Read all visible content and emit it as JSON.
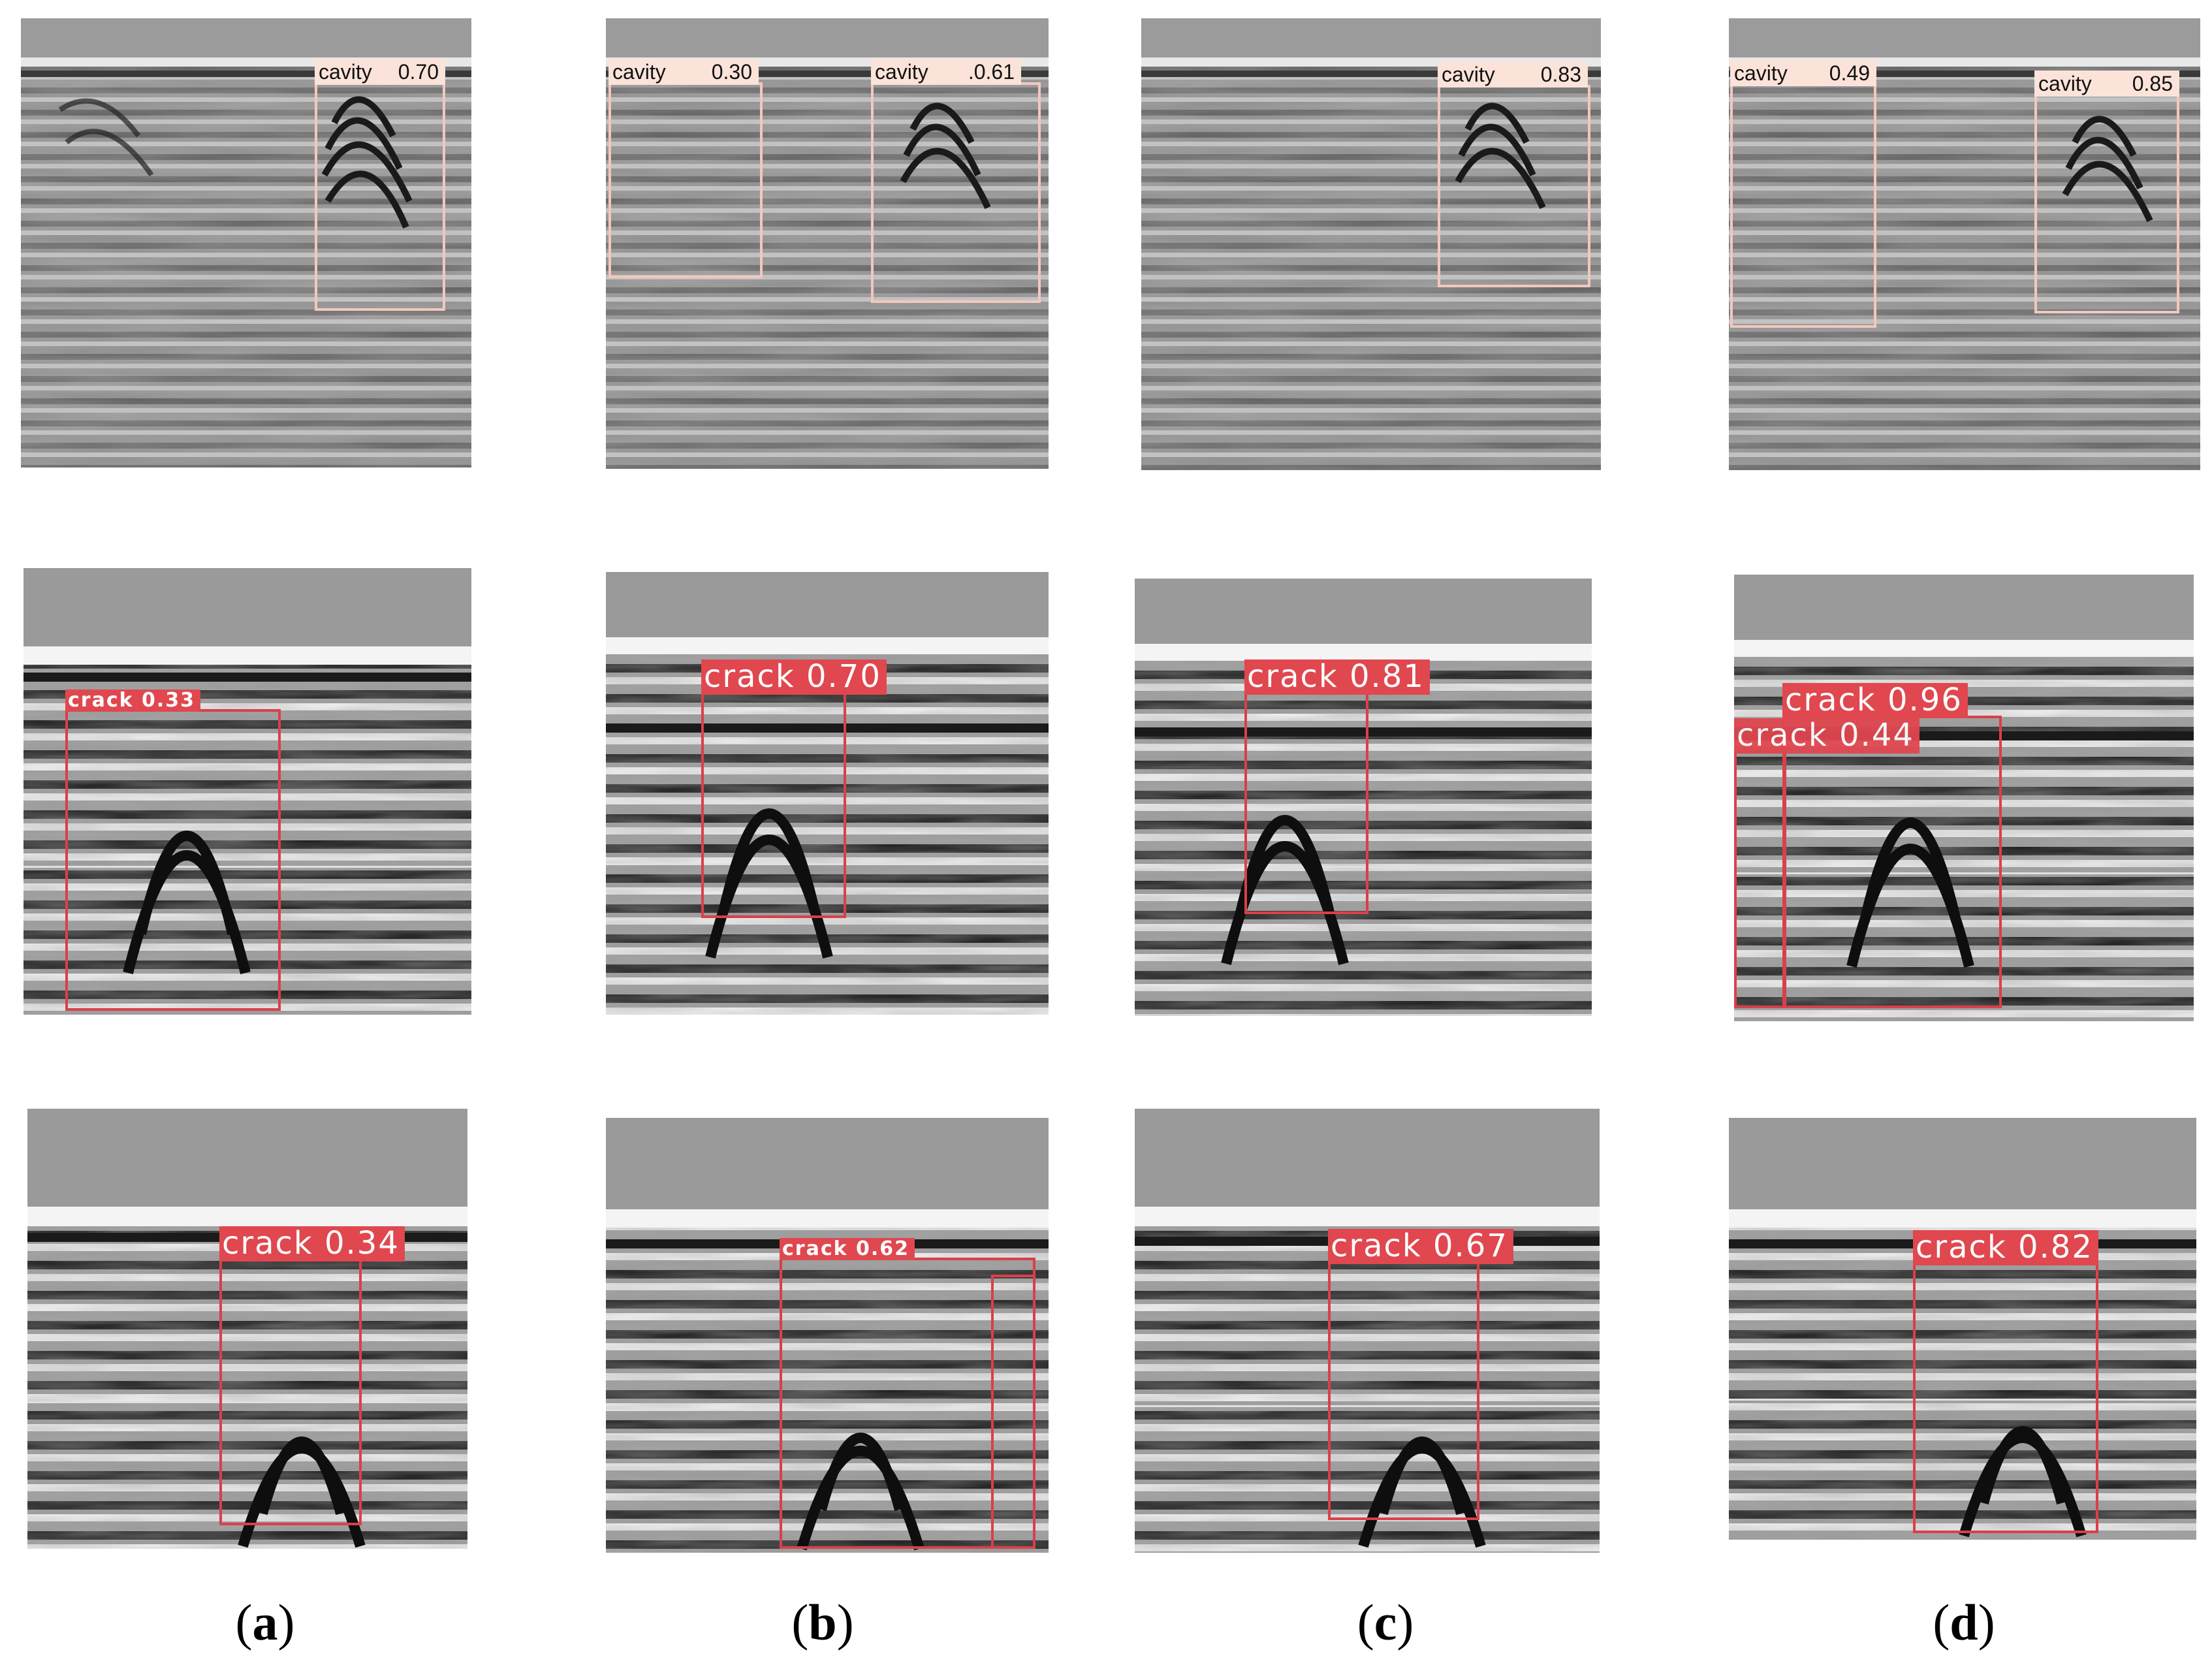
{
  "figure": {
    "columns": [
      {
        "id": "a",
        "caption_open": "(",
        "caption_letter": "a",
        "caption_close": ")"
      },
      {
        "id": "b",
        "caption_open": "(",
        "caption_letter": "b",
        "caption_close": ")"
      },
      {
        "id": "c",
        "caption_open": "(",
        "caption_letter": "c",
        "caption_close": ")"
      },
      {
        "id": "d",
        "caption_open": "(",
        "caption_letter": "d",
        "caption_close": ")"
      }
    ],
    "rows": [
      {
        "id": "row-1-cavity",
        "panels": [
          {
            "detections": [
              {
                "class_label": "cavity",
                "score_label": "0.70"
              }
            ]
          },
          {
            "detections": [
              {
                "class_label": "cavity",
                "score_label": "0.30"
              },
              {
                "class_label": "cavity",
                "score_label": ".0.61"
              }
            ]
          },
          {
            "detections": [
              {
                "class_label": "cavity",
                "score_label": "0.83"
              }
            ]
          },
          {
            "detections": [
              {
                "class_label": "cavity",
                "score_label": "0.49"
              },
              {
                "class_label": "cavity",
                "score_label": "0.85"
              }
            ]
          }
        ]
      },
      {
        "id": "row-2-crack",
        "panels": [
          {
            "detections": [
              {
                "class_label": "crack",
                "score_label": "0.33"
              }
            ]
          },
          {
            "detections": [
              {
                "class_label": "crack",
                "score_label": "0.70"
              }
            ]
          },
          {
            "detections": [
              {
                "class_label": "crack",
                "score_label": "0.81"
              }
            ]
          },
          {
            "detections": [
              {
                "class_label": "crack",
                "score_label": "0.96"
              },
              {
                "class_label": "crack",
                "score_label": "0.44"
              }
            ]
          }
        ]
      },
      {
        "id": "row-3-crack",
        "panels": [
          {
            "detections": [
              {
                "class_label": "crack",
                "score_label": "0.34"
              }
            ]
          },
          {
            "detections": [
              {
                "class_label": "crack",
                "score_label": "0.62"
              }
            ]
          },
          {
            "detections": [
              {
                "class_label": "crack",
                "score_label": "0.67"
              }
            ]
          },
          {
            "detections": [
              {
                "class_label": "crack",
                "score_label": "0.82"
              }
            ]
          }
        ]
      }
    ]
  },
  "colors": {
    "cavity_box": "#f2c8bd",
    "cavity_label_bg": "#fbe3da",
    "crack_box": "#d9404a",
    "crack_label_bg": "#e0474f",
    "radargram_background": "#8a8a8a"
  }
}
